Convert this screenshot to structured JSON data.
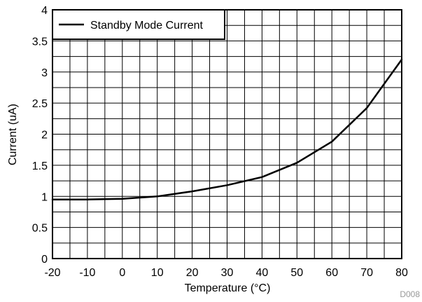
{
  "chart_data": {
    "type": "line",
    "xlabel": "Temperature (°C)",
    "ylabel": "Current (uA)",
    "xlim": [
      -20,
      80
    ],
    "ylim": [
      0,
      4
    ],
    "x_ticks": [
      -20,
      -10,
      0,
      10,
      20,
      30,
      40,
      50,
      60,
      70,
      80
    ],
    "y_ticks": [
      0,
      0.5,
      1,
      1.5,
      2,
      2.5,
      3,
      3.5,
      4
    ],
    "x_tick_labels": [
      "-20",
      "-10",
      "0",
      "10",
      "20",
      "30",
      "40",
      "50",
      "60",
      "70",
      "80"
    ],
    "y_tick_labels": [
      "0",
      "0.5",
      "1",
      "1.5",
      "2",
      "2.5",
      "3",
      "3.5",
      "4"
    ],
    "grid": true,
    "legend_position": "top-left",
    "series": [
      {
        "name": "Standby Mode Current",
        "color": "#000000",
        "x": [
          -20,
          -10,
          0,
          10,
          20,
          30,
          40,
          50,
          60,
          70,
          80
        ],
        "y": [
          0.95,
          0.95,
          0.96,
          1.0,
          1.08,
          1.18,
          1.31,
          1.54,
          1.88,
          2.42,
          3.2
        ]
      }
    ],
    "annotation": "D008"
  }
}
